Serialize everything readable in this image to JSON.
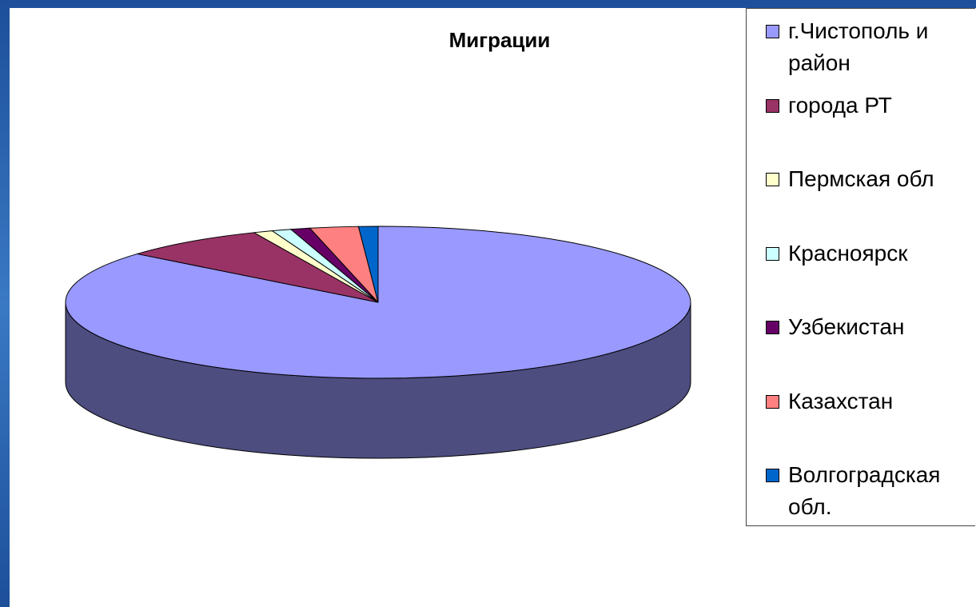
{
  "chart_data": {
    "type": "pie3d",
    "title": "Миграции",
    "categories": [
      "г.Чистополь и район",
      "города РТ",
      "Пермская обл",
      "Красноярск",
      "Узбекистан",
      "Казахстан",
      "Волгоградская обл."
    ],
    "values": [
      86,
      7.5,
      1,
      1,
      1,
      2.5,
      1
    ],
    "colors": [
      "#9999ff",
      "#993366",
      "#ffffcc",
      "#ccffff",
      "#660066",
      "#ff8080",
      "#0066cc"
    ],
    "legend": "right"
  }
}
